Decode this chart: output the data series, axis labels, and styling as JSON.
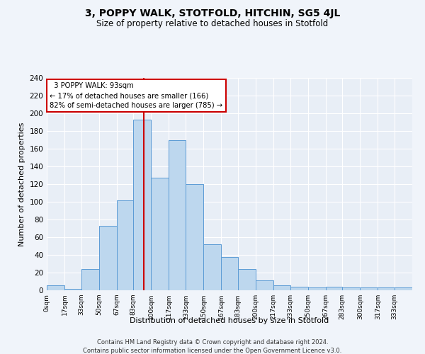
{
  "title": "3, POPPY WALK, STOTFOLD, HITCHIN, SG5 4JL",
  "subtitle": "Size of property relative to detached houses in Stotfold",
  "xlabel": "Distribution of detached houses by size in Stotfold",
  "ylabel": "Number of detached properties",
  "bar_color": "#bdd7ee",
  "bar_edge_color": "#5b9bd5",
  "background_color": "#e8eef6",
  "grid_color": "#ffffff",
  "red_line_color": "#cc0000",
  "bins": [
    0,
    17,
    33,
    50,
    67,
    83,
    100,
    117,
    133,
    150,
    167,
    183,
    200,
    217,
    233,
    250,
    267,
    283,
    300,
    317,
    333,
    350
  ],
  "bin_labels": [
    "0sqm",
    "17sqm",
    "33sqm",
    "50sqm",
    "67sqm",
    "83sqm",
    "100sqm",
    "117sqm",
    "133sqm",
    "150sqm",
    "167sqm",
    "183sqm",
    "200sqm",
    "217sqm",
    "233sqm",
    "250sqm",
    "267sqm",
    "283sqm",
    "300sqm",
    "317sqm",
    "333sqm"
  ],
  "counts": [
    6,
    2,
    24,
    73,
    102,
    193,
    127,
    170,
    120,
    52,
    38,
    24,
    11,
    6,
    4,
    3,
    4,
    3,
    3,
    3,
    3
  ],
  "property_size": 93,
  "property_label": "3 POPPY WALK: 93sqm",
  "pct_smaller": 17,
  "count_smaller": 166,
  "pct_larger_semi": 82,
  "count_larger_semi": 785,
  "ylim": [
    0,
    240
  ],
  "yticks": [
    0,
    20,
    40,
    60,
    80,
    100,
    120,
    140,
    160,
    180,
    200,
    220,
    240
  ],
  "footer1": "Contains HM Land Registry data © Crown copyright and database right 2024.",
  "footer2": "Contains public sector information licensed under the Open Government Licence v3.0."
}
